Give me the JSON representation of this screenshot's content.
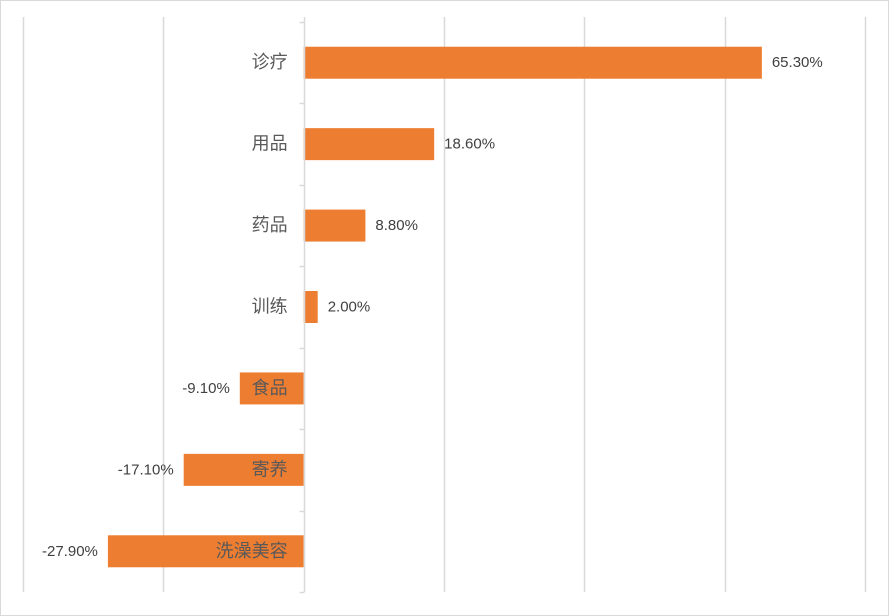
{
  "chart_data": {
    "type": "bar",
    "orientation": "horizontal",
    "categories": [
      "诊疗",
      "用品",
      "药品",
      "训练",
      "食品",
      "寄养",
      "洗澡美容"
    ],
    "values": [
      65.3,
      18.6,
      8.8,
      2.0,
      -9.1,
      -17.1,
      -27.9
    ],
    "data_labels": [
      "65.30%",
      "18.60%",
      "8.80%",
      "2.00%",
      "-9.10%",
      "-17.10%",
      "-27.90%"
    ],
    "xlim": [
      -40,
      80
    ],
    "grid": true,
    "bar_color": "#ED7D31",
    "title": "",
    "xlabel": "",
    "ylabel": ""
  }
}
